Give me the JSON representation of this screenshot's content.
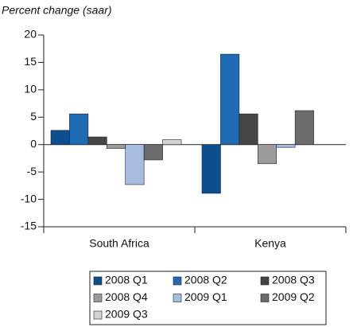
{
  "chart_data": {
    "type": "bar",
    "y_label": "Percent change (saar)",
    "categories": [
      "South Africa",
      "Kenya"
    ],
    "series": [
      {
        "name": "2008 Q1",
        "color": "#0d4e8e",
        "values": [
          2.6,
          -8.9
        ]
      },
      {
        "name": "2008 Q2",
        "color": "#1f6cb5",
        "values": [
          5.6,
          16.5
        ]
      },
      {
        "name": "2008 Q3",
        "color": "#454545",
        "values": [
          1.4,
          5.6
        ]
      },
      {
        "name": "2008 Q4",
        "color": "#9b9b9b",
        "values": [
          -0.7,
          -3.5
        ]
      },
      {
        "name": "2009 Q1",
        "color": "#a8bce0",
        "values": [
          -7.3,
          -0.5
        ]
      },
      {
        "name": "2009 Q2",
        "color": "#6b6b6b",
        "values": [
          -2.8,
          6.2
        ]
      },
      {
        "name": "2009 Q3",
        "color": "#d3d3d3",
        "values": [
          0.9,
          null
        ]
      }
    ],
    "ylim": [
      -15,
      20
    ],
    "yticks": [
      -15,
      -10,
      -5,
      0,
      5,
      10,
      15,
      20
    ],
    "legend": "bottom"
  }
}
